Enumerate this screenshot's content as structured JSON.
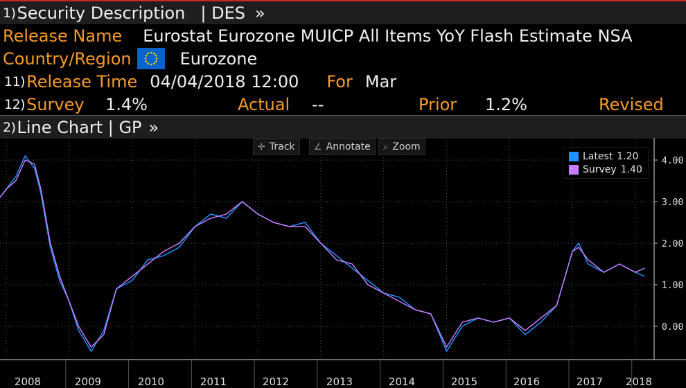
{
  "header": {
    "num": "1)",
    "title": "Security Description",
    "code": "| DES",
    "arrow": "»"
  },
  "release_name": {
    "label": "Release Name",
    "value": "Eurostat Eurozone MUICP All Items YoY Flash Estimate NSA"
  },
  "country": {
    "label": "Country/Region",
    "value": "Eurozone",
    "flag_icon": "eu-flag-icon"
  },
  "release_time": {
    "num": "11)",
    "label": "Release Time",
    "value": "04/04/2018 12:00",
    "for_label": "For",
    "for_value": "Mar"
  },
  "survey_row": {
    "num": "12)",
    "survey_label": "Survey",
    "survey_value": "1.4%",
    "actual_label": "Actual",
    "actual_value": "--",
    "prior_label": "Prior",
    "prior_value": "1.2%",
    "revised_label": "Revised"
  },
  "chart_header": {
    "num": "2)",
    "title": "Line Chart | GP",
    "arrow": "»"
  },
  "toolbar": {
    "track": "Track",
    "track_icon": "crosshair-icon",
    "annotate": "Annotate",
    "annotate_icon": "pencil-icon",
    "zoom": "Zoom",
    "zoom_icon": "magnifier-icon"
  },
  "legend": {
    "latest_label": "Latest",
    "latest_value": "1.20",
    "survey_label": "Survey",
    "survey_value": "1.40"
  },
  "colors": {
    "accent": "#f79a26",
    "latest": "#1e90ff",
    "survey": "#c77dff",
    "header_bg": "#1e1e1e",
    "background": "#000000"
  },
  "chart_data": {
    "type": "line",
    "ylim": [
      -0.8,
      4.5
    ],
    "yticks": [
      0,
      1,
      2,
      3,
      4
    ],
    "ytick_labels": [
      "0.00",
      "1.00",
      "2.00",
      "3.00",
      "4.00"
    ],
    "xlim": [
      2007.9,
      2018.3
    ],
    "xticks": [
      2008,
      2009,
      2010,
      2011,
      2012,
      2013,
      2014,
      2015,
      2016,
      2017,
      2018
    ],
    "xtick_labels": [
      "2008",
      "2009",
      "2010",
      "2011",
      "2012",
      "2013",
      "2014",
      "2015",
      "2016",
      "2017",
      "2018"
    ],
    "grid": true,
    "legend": "top-right",
    "series": [
      {
        "name": "Latest",
        "x": [
          2007.9,
          2008.0,
          2008.15,
          2008.3,
          2008.45,
          2008.55,
          2008.7,
          2008.85,
          2009.0,
          2009.15,
          2009.35,
          2009.55,
          2009.75,
          2010.0,
          2010.25,
          2010.5,
          2010.75,
          2011.0,
          2011.25,
          2011.5,
          2011.75,
          2012.0,
          2012.25,
          2012.5,
          2012.75,
          2013.0,
          2013.25,
          2013.5,
          2013.75,
          2014.0,
          2014.25,
          2014.5,
          2014.75,
          2015.0,
          2015.25,
          2015.5,
          2015.75,
          2016.0,
          2016.25,
          2016.5,
          2016.75,
          2017.0,
          2017.1,
          2017.25,
          2017.5,
          2017.75,
          2018.0,
          2018.15
        ],
        "y": [
          3.1,
          3.3,
          3.6,
          4.1,
          3.8,
          3.2,
          1.9,
          1.1,
          0.6,
          -0.1,
          -0.6,
          -0.1,
          0.9,
          1.1,
          1.6,
          1.7,
          1.9,
          2.4,
          2.7,
          2.6,
          3.0,
          2.7,
          2.5,
          2.4,
          2.5,
          2.0,
          1.7,
          1.4,
          1.1,
          0.8,
          0.7,
          0.4,
          0.3,
          -0.6,
          0.0,
          0.2,
          0.1,
          0.2,
          -0.2,
          0.1,
          0.5,
          1.8,
          2.0,
          1.5,
          1.3,
          1.5,
          1.3,
          1.2
        ]
      },
      {
        "name": "Survey",
        "x": [
          2007.9,
          2008.0,
          2008.15,
          2008.3,
          2008.45,
          2008.55,
          2008.7,
          2008.85,
          2009.0,
          2009.15,
          2009.35,
          2009.55,
          2009.75,
          2010.0,
          2010.25,
          2010.5,
          2010.75,
          2011.0,
          2011.25,
          2011.5,
          2011.75,
          2012.0,
          2012.25,
          2012.5,
          2012.75,
          2013.0,
          2013.25,
          2013.5,
          2013.75,
          2014.0,
          2014.25,
          2014.5,
          2014.75,
          2015.0,
          2015.25,
          2015.5,
          2015.75,
          2016.0,
          2016.25,
          2016.5,
          2016.75,
          2017.0,
          2017.1,
          2017.25,
          2017.5,
          2017.75,
          2018.0,
          2018.15
        ],
        "y": [
          3.1,
          3.3,
          3.5,
          4.0,
          3.9,
          3.3,
          2.0,
          1.2,
          0.6,
          0.0,
          -0.5,
          -0.2,
          0.9,
          1.2,
          1.5,
          1.8,
          2.0,
          2.4,
          2.6,
          2.7,
          3.0,
          2.7,
          2.5,
          2.4,
          2.4,
          2.0,
          1.6,
          1.5,
          1.0,
          0.8,
          0.6,
          0.4,
          0.3,
          -0.5,
          0.1,
          0.2,
          0.1,
          0.2,
          -0.1,
          0.2,
          0.5,
          1.8,
          1.9,
          1.6,
          1.3,
          1.5,
          1.3,
          1.4
        ]
      }
    ]
  }
}
